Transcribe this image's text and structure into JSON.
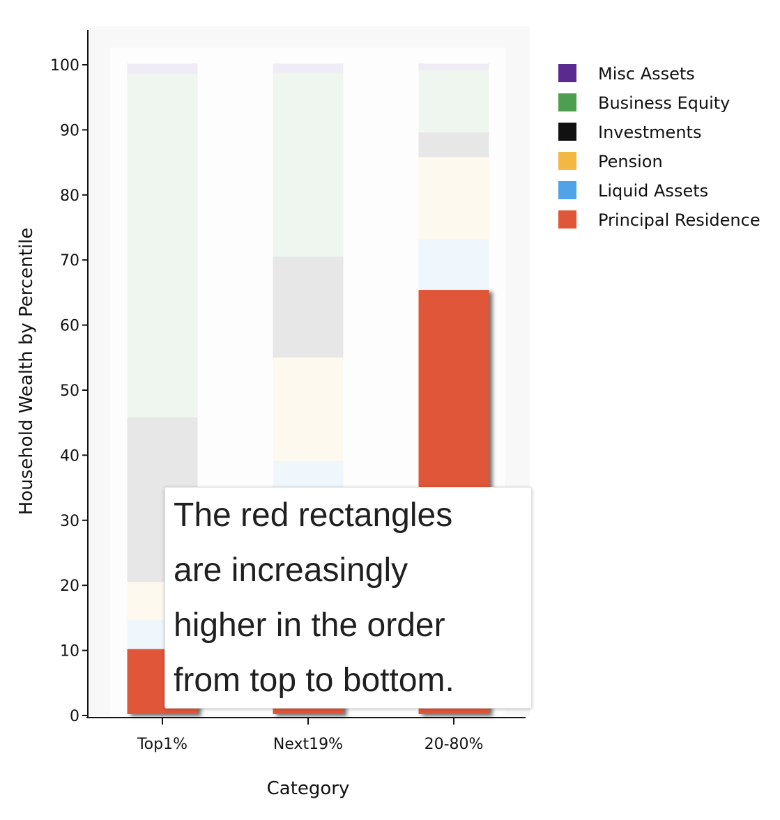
{
  "chart_data": {
    "type": "bar",
    "stacked": true,
    "categories": [
      "Top1%",
      "Next19%",
      "20-80%"
    ],
    "xlabel": "Category",
    "ylabel": "Household Wealth by Percentile",
    "ylim": [
      0,
      100
    ],
    "yticks": [
      0,
      10,
      20,
      30,
      40,
      50,
      60,
      70,
      80,
      90,
      100
    ],
    "grid": false,
    "legend_position": "right",
    "series": [
      {
        "name": "Principal Residence",
        "color": "#e05638",
        "values": [
          10,
          10,
          65.2
        ],
        "highlighted": true
      },
      {
        "name": "Liquid Assets",
        "color": "#4fa3e6",
        "values": [
          4.5,
          28.9,
          7.8
        ],
        "highlighted": false
      },
      {
        "name": "Pension",
        "color": "#f3b844",
        "values": [
          5.8,
          15.9,
          12.6
        ],
        "highlighted": false
      },
      {
        "name": "Investments",
        "color": "#111111",
        "values": [
          25.3,
          15.5,
          3.8
        ],
        "highlighted": false
      },
      {
        "name": "Business Equity",
        "color": "#4d9e4e",
        "values": [
          52.8,
          28.3,
          9.5
        ],
        "highlighted": false
      },
      {
        "name": "Misc Assets",
        "color": "#5b2a91",
        "values": [
          1.6,
          1.4,
          1.1
        ],
        "highlighted": false
      }
    ]
  },
  "annotation": {
    "lines": [
      "The red rectangles",
      "are increasingly",
      "higher in the order",
      "from top to bottom."
    ]
  }
}
